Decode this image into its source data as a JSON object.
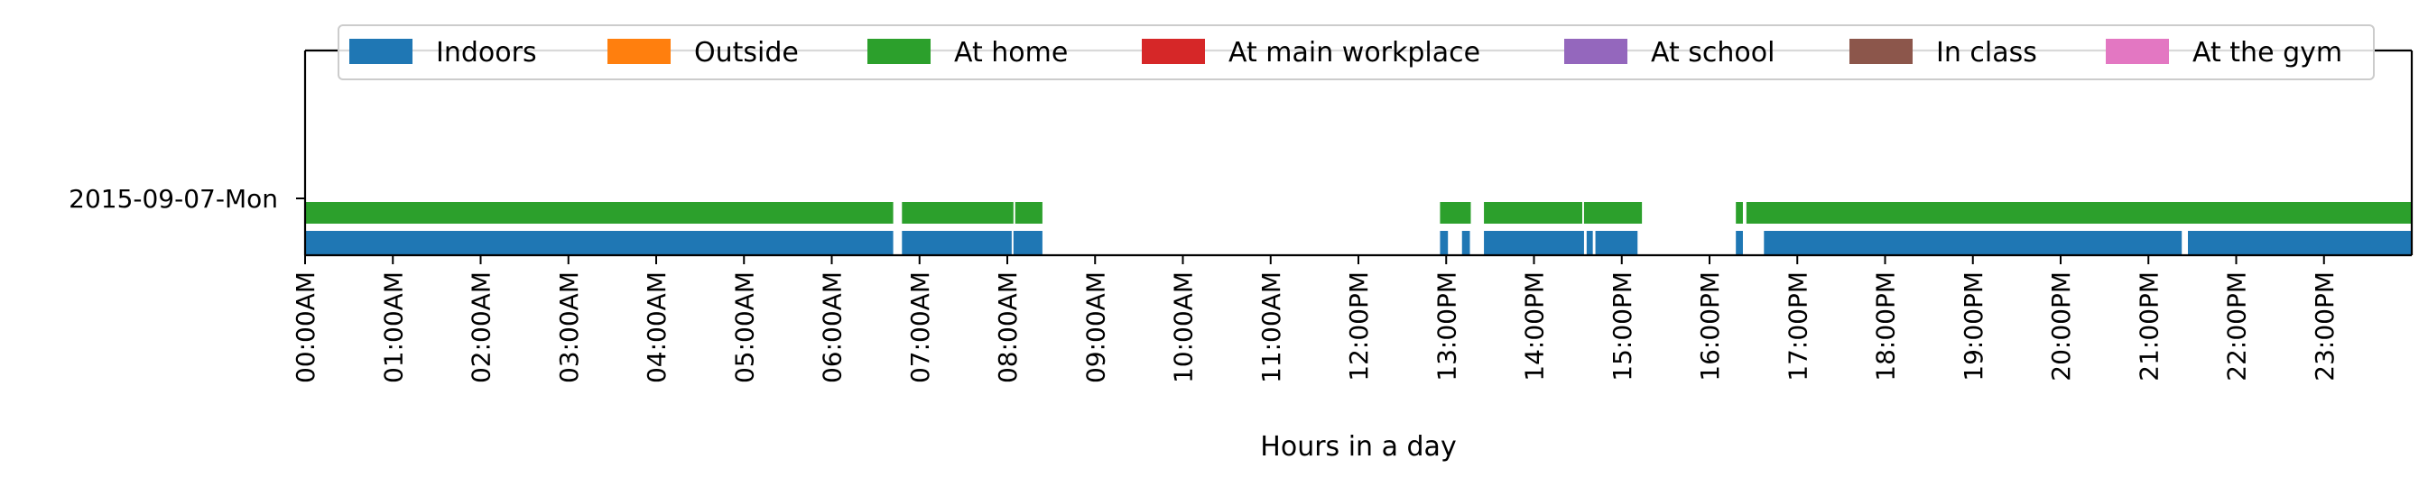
{
  "chart_data": {
    "type": "timeline",
    "xlabel": "Hours in a day",
    "xlim": [
      0,
      24
    ],
    "xticks": [
      {
        "value": 0,
        "label": "00:00AM"
      },
      {
        "value": 1,
        "label": "01:00AM"
      },
      {
        "value": 2,
        "label": "02:00AM"
      },
      {
        "value": 3,
        "label": "03:00AM"
      },
      {
        "value": 4,
        "label": "04:00AM"
      },
      {
        "value": 5,
        "label": "05:00AM"
      },
      {
        "value": 6,
        "label": "06:00AM"
      },
      {
        "value": 7,
        "label": "07:00AM"
      },
      {
        "value": 8,
        "label": "08:00AM"
      },
      {
        "value": 9,
        "label": "09:00AM"
      },
      {
        "value": 10,
        "label": "10:00AM"
      },
      {
        "value": 11,
        "label": "11:00AM"
      },
      {
        "value": 12,
        "label": "12:00PM"
      },
      {
        "value": 13,
        "label": "13:00PM"
      },
      {
        "value": 14,
        "label": "14:00PM"
      },
      {
        "value": 15,
        "label": "15:00PM"
      },
      {
        "value": 16,
        "label": "16:00PM"
      },
      {
        "value": 17,
        "label": "17:00PM"
      },
      {
        "value": 18,
        "label": "18:00PM"
      },
      {
        "value": 19,
        "label": "19:00PM"
      },
      {
        "value": 20,
        "label": "20:00PM"
      },
      {
        "value": 21,
        "label": "21:00PM"
      },
      {
        "value": 22,
        "label": "22:00PM"
      },
      {
        "value": 23,
        "label": "23:00PM"
      }
    ],
    "ylabels": [
      "2015-09-07-Mon"
    ],
    "legend_position": "top",
    "legend": [
      {
        "name": "Indoors",
        "color": "#1f77b4"
      },
      {
        "name": "Outside",
        "color": "#ff7f0e"
      },
      {
        "name": "At home",
        "color": "#2ca02c"
      },
      {
        "name": "At main workplace",
        "color": "#d62728"
      },
      {
        "name": "At school",
        "color": "#9467bd"
      },
      {
        "name": "In class",
        "color": "#8c564b"
      },
      {
        "name": "At the gym",
        "color": "#e377c2"
      }
    ],
    "series": [
      {
        "name": "Indoors",
        "day": "2015-09-07-Mon",
        "intervals": [
          [
            0.0,
            6.7
          ],
          [
            6.8,
            8.05
          ],
          [
            8.07,
            8.4
          ],
          [
            12.93,
            13.02
          ],
          [
            13.18,
            13.27
          ],
          [
            13.43,
            14.57
          ],
          [
            14.6,
            14.67
          ],
          [
            14.7,
            15.18
          ],
          [
            16.3,
            16.38
          ],
          [
            16.62,
            21.38
          ],
          [
            21.45,
            24.0
          ]
        ]
      },
      {
        "name": "At home",
        "day": "2015-09-07-Mon",
        "intervals": [
          [
            0.0,
            6.7
          ],
          [
            6.8,
            8.07
          ],
          [
            8.09,
            8.4
          ],
          [
            12.93,
            13.28
          ],
          [
            13.43,
            14.55
          ],
          [
            14.57,
            15.23
          ],
          [
            16.3,
            16.38
          ],
          [
            16.42,
            24.0
          ]
        ]
      }
    ]
  }
}
